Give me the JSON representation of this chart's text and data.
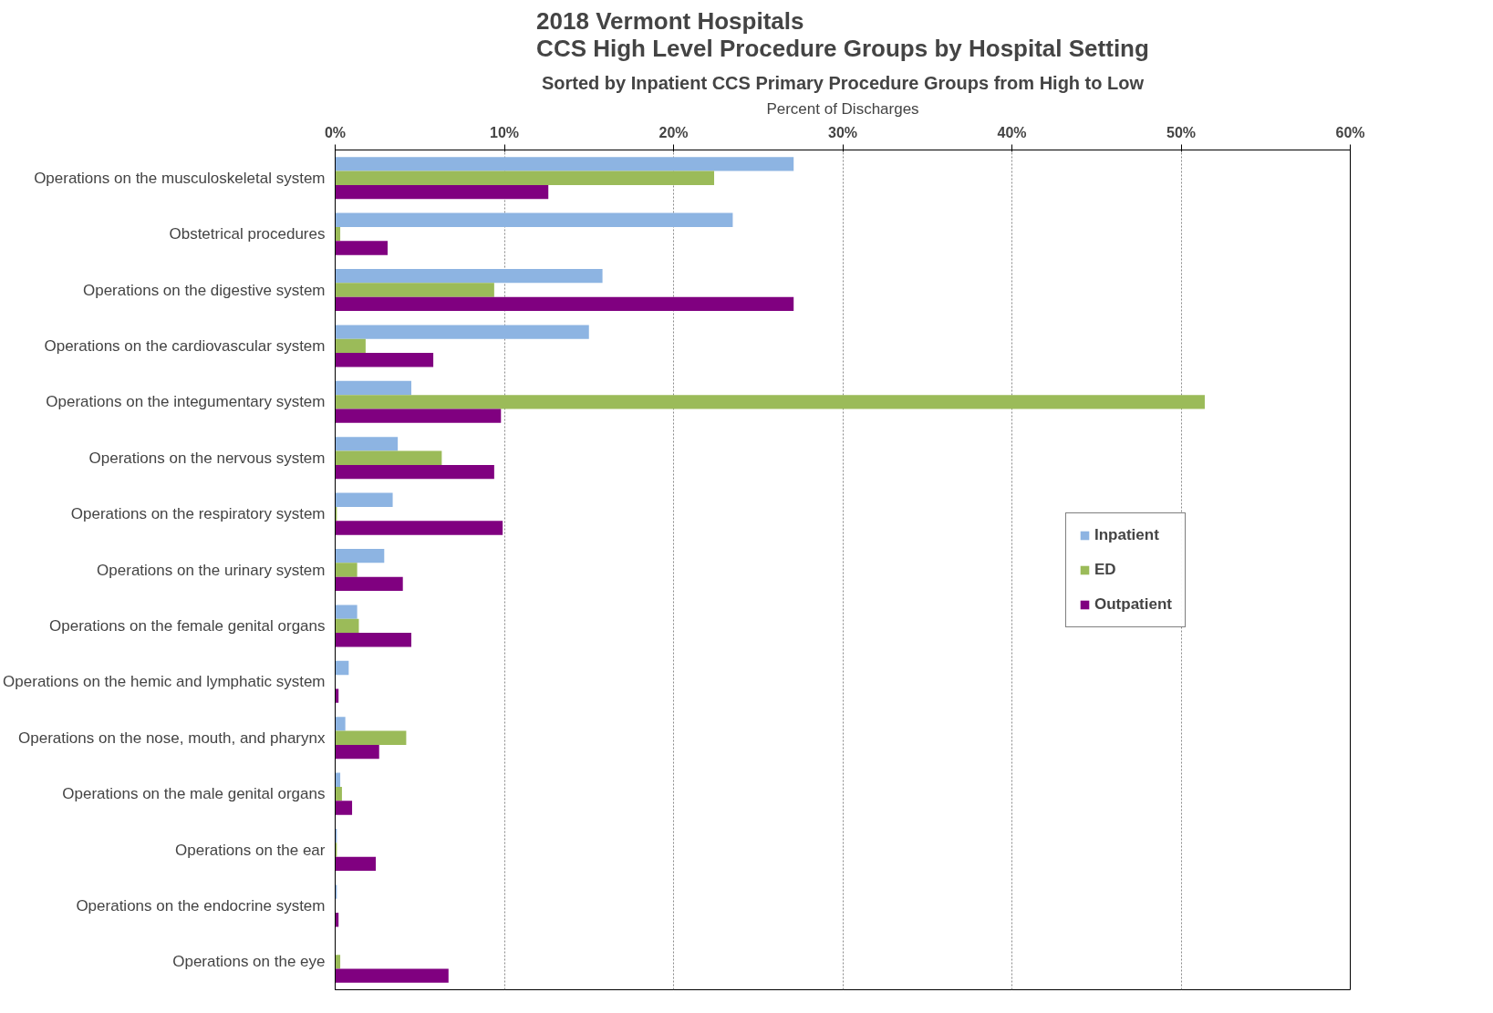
{
  "chart_data": {
    "type": "bar",
    "orientation": "horizontal",
    "title": "2018 Vermont Hospitals\nCCS High Level Procedure Groups by Hospital Setting",
    "subtitle": "Sorted by Inpatient CCS Primary Procedure Groups from High to Low",
    "xlabel": "Percent of Discharges",
    "categories": [
      "Operations on the musculoskeletal system",
      "Obstetrical procedures",
      "Operations on the digestive system",
      "Operations on the cardiovascular system",
      "Operations on the integumentary system",
      "Operations on the nervous system",
      "Operations on the respiratory system",
      "Operations on the urinary system",
      "Operations on the female genital organs",
      "Operations on the hemic and lymphatic system",
      "Operations on the nose, mouth, and pharynx",
      "Operations on the male genital organs",
      "Operations on the ear",
      "Operations on the endocrine system",
      "Operations on the eye"
    ],
    "series": [
      {
        "name": "Inpatient",
        "color": "#8db4e2",
        "values": [
          27.1,
          23.5,
          15.8,
          15.0,
          4.5,
          3.7,
          3.4,
          2.9,
          1.3,
          0.8,
          0.6,
          0.3,
          0.1,
          0.1,
          0.0
        ]
      },
      {
        "name": "ED",
        "color": "#9bbb59",
        "values": [
          22.4,
          0.3,
          9.4,
          1.8,
          51.4,
          6.3,
          0.1,
          1.3,
          1.4,
          0.0,
          4.2,
          0.4,
          0.1,
          0.0,
          0.3
        ]
      },
      {
        "name": "Outpatient",
        "color": "#800080",
        "values": [
          12.6,
          3.1,
          27.1,
          5.8,
          9.8,
          9.4,
          9.9,
          4.0,
          4.5,
          0.2,
          2.6,
          1.0,
          2.4,
          0.2,
          6.7
        ]
      }
    ],
    "xlim": [
      0,
      60
    ],
    "xticks": [
      {
        "value": 0,
        "label": "0%"
      },
      {
        "value": 10,
        "label": "10%"
      },
      {
        "value": 20,
        "label": "20%"
      },
      {
        "value": 30,
        "label": "30%"
      },
      {
        "value": 40,
        "label": "40%"
      },
      {
        "value": 50,
        "label": "50%"
      },
      {
        "value": 60,
        "label": "60%"
      }
    ],
    "grid": "x",
    "legend": "right"
  }
}
